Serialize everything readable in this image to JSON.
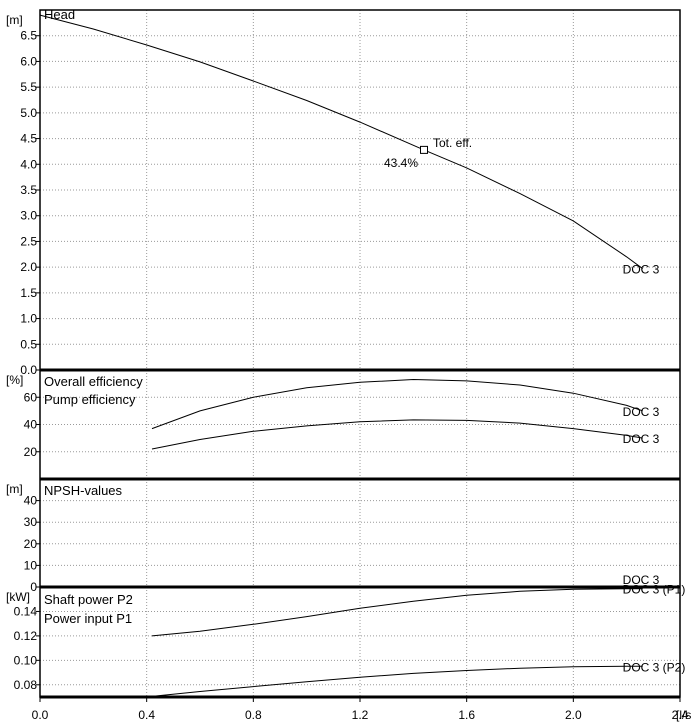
{
  "chart_data": {
    "type": "line",
    "x_unit": "[l/s",
    "x_ticks": [
      "0.0",
      "0.4",
      "0.8",
      "1.2",
      "1.6",
      "2.0",
      "2.4"
    ],
    "xlim": [
      0,
      2.4
    ],
    "panels": [
      {
        "id": "head",
        "unit": "[m]",
        "titles": [
          "Head"
        ],
        "ylim": [
          0,
          7
        ],
        "y_ticks": [
          "0.0",
          "0.5",
          "1.0",
          "1.5",
          "2.0",
          "2.5",
          "3.0",
          "3.5",
          "4.0",
          "4.5",
          "5.0",
          "5.5",
          "6.0",
          "6.5"
        ],
        "series": [
          {
            "name": "DOC 3",
            "x": [
              0.0,
              0.2,
              0.4,
              0.6,
              0.8,
              1.0,
              1.2,
              1.44,
              1.6,
              1.8,
              2.0,
              2.2,
              2.26
            ],
            "y": [
              6.9,
              6.63,
              6.32,
              5.99,
              5.62,
              5.24,
              4.82,
              4.28,
              3.93,
              3.43,
              2.9,
              2.2,
              1.97
            ]
          }
        ],
        "annotation": {
          "x": 1.44,
          "y": 4.28,
          "label": "Tot. eff.",
          "value": "43.4%"
        }
      },
      {
        "id": "efficiency",
        "unit": "[%]",
        "titles": [
          "Overall efficiency",
          "Pump efficiency"
        ],
        "ylim": [
          0,
          80
        ],
        "y_ticks": [
          "20",
          "40",
          "60"
        ],
        "series": [
          {
            "name": "DOC 3",
            "x": [
              0.42,
              0.6,
              0.8,
              1.0,
              1.2,
              1.4,
              1.6,
              1.8,
              2.0,
              2.2,
              2.26
            ],
            "y": [
              37,
              50,
              60,
              67,
              71,
              73,
              72,
              69,
              63,
              54,
              50
            ]
          },
          {
            "name": "DOC 3",
            "x": [
              0.42,
              0.6,
              0.8,
              1.0,
              1.2,
              1.4,
              1.6,
              1.8,
              2.0,
              2.2,
              2.26
            ],
            "y": [
              22,
              29,
              35,
              39,
              42,
              43.4,
              43,
              41,
              37,
              32,
              30
            ]
          }
        ]
      },
      {
        "id": "npsh",
        "unit": "[m]",
        "titles": [
          "NPSH-values"
        ],
        "ylim": [
          0,
          50
        ],
        "y_ticks": [
          "0",
          "10",
          "20",
          "30",
          "40"
        ],
        "series_labels": [
          "DOC 3"
        ]
      },
      {
        "id": "power",
        "unit": "[kW]",
        "titles": [
          "Shaft power P2",
          "Power input P1"
        ],
        "ylim": [
          0.07,
          0.16
        ],
        "y_ticks": [
          "0.08",
          "0.10",
          "0.12",
          "0.14"
        ],
        "series": [
          {
            "name": "DOC 3 (P1)",
            "x": [
              0.42,
              0.6,
              0.8,
              1.0,
              1.2,
              1.4,
              1.6,
              1.8,
              2.0,
              2.2,
              2.26
            ],
            "y": [
              0.12,
              0.1238,
              0.1295,
              0.1358,
              0.1426,
              0.1484,
              0.1532,
              0.1565,
              0.1582,
              0.1586,
              0.1586
            ]
          },
          {
            "name": "DOC 3 (P2)",
            "x": [
              0.42,
              0.6,
              0.8,
              1.0,
              1.2,
              1.4,
              1.6,
              1.8,
              2.0,
              2.2,
              2.26
            ],
            "y": [
              0.0705,
              0.0745,
              0.0785,
              0.0825,
              0.0862,
              0.0893,
              0.0917,
              0.0936,
              0.0947,
              0.0951,
              0.0951
            ]
          }
        ]
      }
    ]
  }
}
